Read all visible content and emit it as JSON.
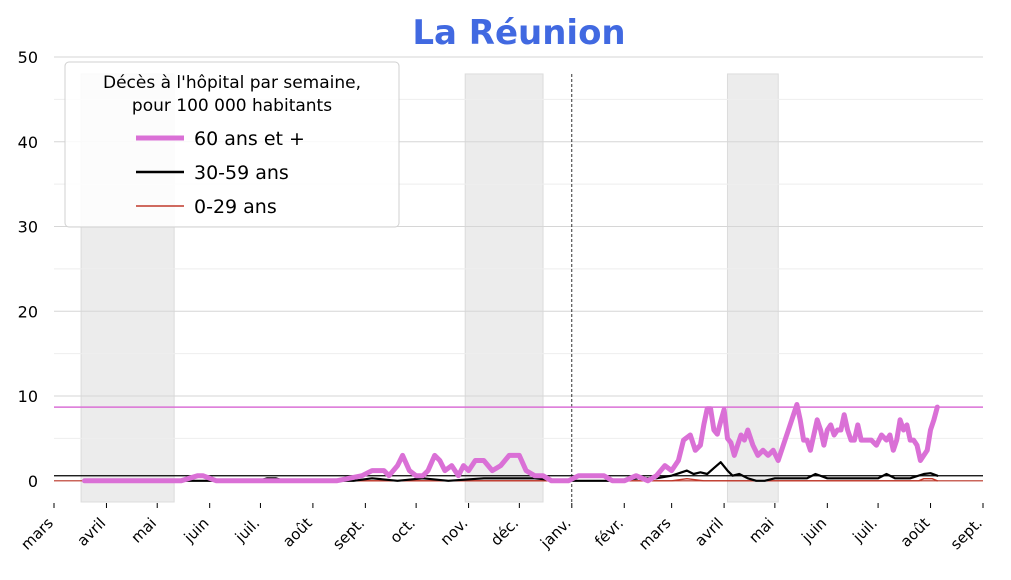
{
  "chart_data": {
    "type": "line",
    "title": "La Réunion",
    "xlabel": "",
    "ylabel": "",
    "ylim": [
      -2.5,
      50
    ],
    "yticks": [
      0,
      10,
      20,
      30,
      40,
      50
    ],
    "xlim": [
      "2020-03-01",
      "2021-09-01"
    ],
    "xtick_dates": [
      "2020-03-01",
      "2020-04-01",
      "2020-05-01",
      "2020-06-01",
      "2020-07-01",
      "2020-08-01",
      "2020-09-01",
      "2020-10-01",
      "2020-11-01",
      "2020-12-01",
      "2021-01-01",
      "2021-02-01",
      "2021-03-01",
      "2021-04-01",
      "2021-05-01",
      "2021-06-01",
      "2021-07-01",
      "2021-08-01",
      "2021-09-01"
    ],
    "xtick_labels": [
      "mars",
      "avril",
      "mai",
      "juin",
      "juil.",
      "août",
      "sept.",
      "oct.",
      "nov.",
      "déc.",
      "janv.",
      "févr.",
      "mars",
      "avril",
      "mai",
      "juin",
      "juil.",
      "août",
      "sept."
    ],
    "grid": true,
    "legend": {
      "title_lines": [
        "Décès à l'hôpital par semaine,",
        "pour 100 000 habitants"
      ],
      "placement": "top-left"
    },
    "shaded_periods": [
      {
        "start": "2020-03-17",
        "end": "2020-05-11"
      },
      {
        "start": "2020-10-30",
        "end": "2020-12-15"
      },
      {
        "start": "2021-04-03",
        "end": "2021-05-03"
      }
    ],
    "vertical_line": "2021-01-01",
    "series": [
      {
        "name": "60 ans et +",
        "color": "#da70d6",
        "current_value_line": 8.7,
        "x": [
          "2020-03-19",
          "2020-04-15",
          "2020-05-15",
          "2020-05-25",
          "2020-05-28",
          "2020-06-05",
          "2020-06-20",
          "2020-07-15",
          "2020-08-15",
          "2020-08-30",
          "2020-09-05",
          "2020-09-12",
          "2020-09-15",
          "2020-09-20",
          "2020-09-23",
          "2020-09-27",
          "2020-10-01",
          "2020-10-05",
          "2020-10-08",
          "2020-10-12",
          "2020-10-15",
          "2020-10-18",
          "2020-10-22",
          "2020-10-26",
          "2020-10-29",
          "2020-11-01",
          "2020-11-05",
          "2020-11-10",
          "2020-11-15",
          "2020-11-20",
          "2020-11-25",
          "2020-12-01",
          "2020-12-05",
          "2020-12-10",
          "2020-12-15",
          "2020-12-20",
          "2020-12-25",
          "2020-12-30",
          "2021-01-05",
          "2021-01-10",
          "2021-01-15",
          "2021-01-20",
          "2021-01-25",
          "2021-02-01",
          "2021-02-08",
          "2021-02-15",
          "2021-02-20",
          "2021-02-25",
          "2021-03-01",
          "2021-03-05",
          "2021-03-08",
          "2021-03-12",
          "2021-03-15",
          "2021-03-18",
          "2021-03-20",
          "2021-03-22",
          "2021-03-24",
          "2021-03-26",
          "2021-03-28",
          "2021-03-30",
          "2021-04-01",
          "2021-04-03",
          "2021-04-05",
          "2021-04-07",
          "2021-04-09",
          "2021-04-11",
          "2021-04-13",
          "2021-04-15",
          "2021-04-18",
          "2021-04-21",
          "2021-04-24",
          "2021-04-27",
          "2021-04-30",
          "2021-05-03",
          "2021-05-06",
          "2021-05-09",
          "2021-05-12",
          "2021-05-14",
          "2021-05-16",
          "2021-05-18",
          "2021-05-20",
          "2021-05-22",
          "2021-05-24",
          "2021-05-26",
          "2021-05-28",
          "2021-05-30",
          "2021-06-01",
          "2021-06-03",
          "2021-06-05",
          "2021-06-07",
          "2021-06-09",
          "2021-06-11",
          "2021-06-13",
          "2021-06-15",
          "2021-06-17",
          "2021-06-19",
          "2021-06-21",
          "2021-06-24",
          "2021-06-27",
          "2021-06-30",
          "2021-07-03",
          "2021-07-06",
          "2021-07-08",
          "2021-07-10",
          "2021-07-12",
          "2021-07-14",
          "2021-07-16",
          "2021-07-18",
          "2021-07-20",
          "2021-07-22",
          "2021-07-24",
          "2021-07-26",
          "2021-07-28",
          "2021-07-30",
          "2021-08-01",
          "2021-08-03",
          "2021-08-05"
        ],
        "y": [
          0,
          0,
          0,
          0.6,
          0.6,
          0,
          0,
          0,
          0,
          0.6,
          1.2,
          1.2,
          0.6,
          1.8,
          3,
          1.2,
          0.6,
          0.6,
          1.2,
          3,
          2.4,
          1.2,
          1.8,
          0.6,
          1.8,
          1.2,
          2.4,
          2.4,
          1.2,
          1.8,
          3,
          3,
          1.2,
          0.6,
          0.6,
          0,
          0,
          0,
          0.6,
          0.6,
          0.6,
          0.6,
          0,
          0,
          0.6,
          0,
          0.6,
          1.8,
          1.2,
          2.4,
          4.8,
          5.4,
          3.6,
          4.2,
          6.6,
          8.5,
          8.5,
          6.0,
          5.5,
          7.0,
          8.4,
          5.0,
          4.5,
          3.0,
          4.2,
          5.4,
          4.8,
          6.0,
          4.2,
          3.0,
          3.6,
          3.0,
          3.6,
          2.4,
          4.2,
          6.0,
          7.8,
          9.0,
          7.2,
          4.8,
          4.8,
          3.6,
          5.4,
          7.2,
          6.0,
          4.2,
          6.0,
          6.6,
          5.4,
          6.0,
          6.0,
          7.8,
          6.0,
          4.8,
          4.8,
          6.6,
          4.8,
          4.8,
          4.8,
          4.2,
          5.4,
          4.8,
          5.4,
          3.6,
          4.8,
          7.2,
          6.0,
          6.6,
          4.8,
          4.8,
          4.2,
          2.4,
          3.0,
          3.6,
          6.0,
          7.2,
          8.7
        ]
      },
      {
        "name": "30-59 ans",
        "color": "#000000",
        "current_value_line": 0.6,
        "x": [
          "2020-03-19",
          "2020-06-30",
          "2020-07-05",
          "2020-07-10",
          "2020-07-15",
          "2020-08-25",
          "2020-09-05",
          "2020-09-20",
          "2020-10-05",
          "2020-10-20",
          "2020-11-10",
          "2020-11-25",
          "2020-12-10",
          "2020-12-25",
          "2021-01-10",
          "2021-01-25",
          "2021-02-10",
          "2021-02-20",
          "2021-03-01",
          "2021-03-10",
          "2021-03-14",
          "2021-03-18",
          "2021-03-22",
          "2021-03-26",
          "2021-03-30",
          "2021-04-03",
          "2021-04-06",
          "2021-04-10",
          "2021-04-15",
          "2021-04-20",
          "2021-04-25",
          "2021-05-01",
          "2021-05-10",
          "2021-05-20",
          "2021-05-25",
          "2021-06-01",
          "2021-06-10",
          "2021-06-20",
          "2021-07-01",
          "2021-07-06",
          "2021-07-11",
          "2021-07-20",
          "2021-07-28",
          "2021-08-01",
          "2021-08-05"
        ],
        "y": [
          0,
          0,
          0.3,
          0.3,
          0,
          0,
          0.3,
          0,
          0.3,
          0,
          0.3,
          0.3,
          0.3,
          0,
          0,
          0,
          0.3,
          0.3,
          0.6,
          1.2,
          0.8,
          1.0,
          0.8,
          1.5,
          2.2,
          1.2,
          0.6,
          0.8,
          0.3,
          0,
          0,
          0.3,
          0.3,
          0.3,
          0.8,
          0.3,
          0.3,
          0.3,
          0.3,
          0.8,
          0.3,
          0.3,
          0.8,
          0.9,
          0.6
        ]
      },
      {
        "name": "0-29 ans",
        "color": "#c0392b",
        "current_value_line": 0,
        "x": [
          "2020-03-19",
          "2021-03-01",
          "2021-03-10",
          "2021-03-20",
          "2021-07-25",
          "2021-07-28",
          "2021-08-02",
          "2021-08-05"
        ],
        "y": [
          0,
          0,
          0.25,
          0,
          0,
          0.25,
          0.25,
          0
        ]
      }
    ]
  }
}
